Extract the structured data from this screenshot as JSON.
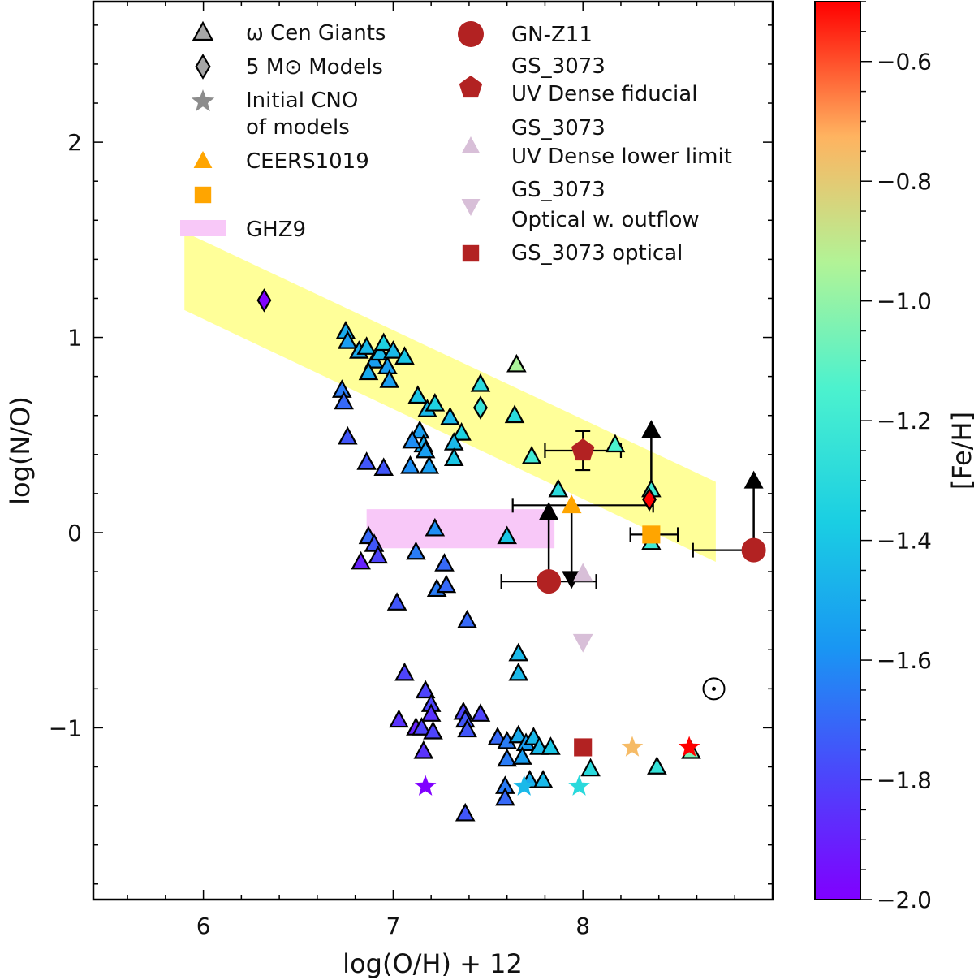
{
  "chart_data": {
    "type": "scatter",
    "xlabel": "log(O/H) + 12",
    "ylabel": "log(N/O)",
    "xlim": [
      5.42,
      9.0
    ],
    "ylim": [
      -1.88,
      2.72
    ],
    "x_ticks": [
      6,
      7,
      8
    ],
    "y_ticks": [
      -1,
      0,
      1,
      2
    ],
    "x_tick_labels": [
      "6",
      "7",
      "8"
    ],
    "y_tick_labels": [
      "−1",
      "0",
      "1",
      "2"
    ],
    "colorbar": {
      "label": "[Fe/H]",
      "range": [
        -2.0,
        -0.5
      ],
      "ticks": [
        -2.0,
        -1.8,
        -1.6,
        -1.4,
        -1.2,
        -1.0,
        -0.8,
        -0.6
      ],
      "tick_labels": [
        "−2.0",
        "−1.8",
        "−1.6",
        "−1.4",
        "−1.2",
        "−1.0",
        "−0.8",
        "−0.6"
      ],
      "colormap": "rainbow"
    },
    "legend": {
      "placement": "top",
      "entries": [
        {
          "label": "ω Cen Giants",
          "marker": "triangle",
          "color": "#a6a6a6"
        },
        {
          "label": "5 M⊙ Models",
          "marker": "diamond",
          "color": "#a6a6a6"
        },
        {
          "label": "Initial CNO",
          "label2": "of models",
          "marker": "star",
          "color": "#8c8c8c"
        },
        {
          "label": "CEERS1019",
          "marker": "triangle",
          "color": "#ffa500"
        },
        {
          "label": "",
          "marker": "square",
          "color": "#ffa500"
        },
        {
          "label": "GHZ9",
          "marker": "band",
          "color": "#f8c8f8"
        },
        {
          "label": "GN-Z11",
          "marker": "circle",
          "color": "#b22222"
        },
        {
          "label": "GS_3073",
          "label2": "UV Dense fiducial",
          "marker": "pentagon",
          "color": "#b22222"
        },
        {
          "label": "GS_3073",
          "label2": "UV Dense lower limit",
          "marker": "triangle",
          "color": "#d8bfd8"
        },
        {
          "label": "GS_3073",
          "label2": "Optical w. outflow",
          "marker": "triangle-down",
          "color": "#d8bfd8"
        },
        {
          "label": "GS_3073 optical",
          "marker": "square",
          "color": "#b22222"
        }
      ]
    },
    "solar_symbol": {
      "x": 8.69,
      "y": -0.8
    },
    "bands": [
      {
        "name": "model-band",
        "color": "#ffff99",
        "polygon": [
          [
            5.9,
            1.54
          ],
          [
            8.7,
            0.26
          ],
          [
            8.7,
            -0.15
          ],
          [
            5.9,
            1.14
          ]
        ]
      },
      {
        "name": "ghz9-band",
        "color": "#f8c8f8",
        "polygon": [
          [
            6.86,
            0.12
          ],
          [
            7.85,
            0.12
          ],
          [
            7.85,
            -0.08
          ],
          [
            6.86,
            -0.08
          ]
        ]
      }
    ],
    "series": [
      {
        "name": "ω Cen Giants",
        "marker": "triangle",
        "points": [
          {
            "x": 6.75,
            "y": 1.03,
            "feh": -1.5
          },
          {
            "x": 6.76,
            "y": 0.98,
            "feh": -1.55
          },
          {
            "x": 6.82,
            "y": 0.93,
            "feh": -1.5
          },
          {
            "x": 6.86,
            "y": 0.95,
            "feh": -1.45
          },
          {
            "x": 6.9,
            "y": 0.88,
            "feh": -1.55
          },
          {
            "x": 6.93,
            "y": 0.92,
            "feh": -1.45
          },
          {
            "x": 6.95,
            "y": 0.97,
            "feh": -1.35
          },
          {
            "x": 6.97,
            "y": 0.85,
            "feh": -1.55
          },
          {
            "x": 7.0,
            "y": 0.93,
            "feh": -1.45
          },
          {
            "x": 7.06,
            "y": 0.9,
            "feh": -1.4
          },
          {
            "x": 6.87,
            "y": 0.82,
            "feh": -1.5
          },
          {
            "x": 6.98,
            "y": 0.78,
            "feh": -1.55
          },
          {
            "x": 6.73,
            "y": 0.73,
            "feh": -1.65
          },
          {
            "x": 6.74,
            "y": 0.67,
            "feh": -1.7
          },
          {
            "x": 7.13,
            "y": 0.7,
            "feh": -1.4
          },
          {
            "x": 7.18,
            "y": 0.63,
            "feh": -1.45
          },
          {
            "x": 7.22,
            "y": 0.66,
            "feh": -1.35
          },
          {
            "x": 7.3,
            "y": 0.59,
            "feh": -1.45
          },
          {
            "x": 7.46,
            "y": 0.76,
            "feh": -1.3
          },
          {
            "x": 7.64,
            "y": 0.6,
            "feh": -1.3
          },
          {
            "x": 7.65,
            "y": 0.86,
            "feh": -0.95
          },
          {
            "x": 7.36,
            "y": 0.51,
            "feh": -1.35
          },
          {
            "x": 7.14,
            "y": 0.52,
            "feh": -1.55
          },
          {
            "x": 7.16,
            "y": 0.45,
            "feh": -1.5
          },
          {
            "x": 7.1,
            "y": 0.47,
            "feh": -1.6
          },
          {
            "x": 7.17,
            "y": 0.42,
            "feh": -1.55
          },
          {
            "x": 7.32,
            "y": 0.46,
            "feh": -1.45
          },
          {
            "x": 7.32,
            "y": 0.38,
            "feh": -1.4
          },
          {
            "x": 7.19,
            "y": 0.34,
            "feh": -1.55
          },
          {
            "x": 7.09,
            "y": 0.34,
            "feh": -1.6
          },
          {
            "x": 6.76,
            "y": 0.49,
            "feh": -1.75
          },
          {
            "x": 6.86,
            "y": 0.36,
            "feh": -1.75
          },
          {
            "x": 6.95,
            "y": 0.33,
            "feh": -1.75
          },
          {
            "x": 7.73,
            "y": 0.39,
            "feh": -1.2
          },
          {
            "x": 7.87,
            "y": 0.22,
            "feh": -1.3
          },
          {
            "x": 8.17,
            "y": 0.45,
            "feh": -1.15
          },
          {
            "x": 7.6,
            "y": -0.02,
            "feh": -1.4
          },
          {
            "x": 7.22,
            "y": 0.02,
            "feh": -1.6
          },
          {
            "x": 7.12,
            "y": -0.1,
            "feh": -1.65
          },
          {
            "x": 6.87,
            "y": -0.02,
            "feh": -1.7
          },
          {
            "x": 6.9,
            "y": -0.06,
            "feh": -1.75
          },
          {
            "x": 6.92,
            "y": -0.12,
            "feh": -1.8
          },
          {
            "x": 6.83,
            "y": -0.15,
            "feh": -1.9
          },
          {
            "x": 7.27,
            "y": -0.16,
            "feh": -1.7
          },
          {
            "x": 7.23,
            "y": -0.29,
            "feh": -1.65
          },
          {
            "x": 7.28,
            "y": -0.27,
            "feh": -1.7
          },
          {
            "x": 7.02,
            "y": -0.36,
            "feh": -1.75
          },
          {
            "x": 7.39,
            "y": -0.45,
            "feh": -1.7
          },
          {
            "x": 7.66,
            "y": -0.62,
            "feh": -1.45
          },
          {
            "x": 7.66,
            "y": -0.72,
            "feh": -1.45
          },
          {
            "x": 7.06,
            "y": -0.72,
            "feh": -1.8
          },
          {
            "x": 7.17,
            "y": -0.81,
            "feh": -1.8
          },
          {
            "x": 7.2,
            "y": -0.88,
            "feh": -1.8
          },
          {
            "x": 7.2,
            "y": -0.93,
            "feh": -1.85
          },
          {
            "x": 7.03,
            "y": -0.96,
            "feh": -1.85
          },
          {
            "x": 7.12,
            "y": -1.0,
            "feh": -1.9
          },
          {
            "x": 7.15,
            "y": -1.0,
            "feh": -1.8
          },
          {
            "x": 7.21,
            "y": -1.02,
            "feh": -1.8
          },
          {
            "x": 7.16,
            "y": -1.12,
            "feh": -1.85
          },
          {
            "x": 7.37,
            "y": -0.92,
            "feh": -1.8
          },
          {
            "x": 7.38,
            "y": -0.96,
            "feh": -1.75
          },
          {
            "x": 7.46,
            "y": -0.93,
            "feh": -1.8
          },
          {
            "x": 7.39,
            "y": -1.01,
            "feh": -1.75
          },
          {
            "x": 7.55,
            "y": -1.05,
            "feh": -1.7
          },
          {
            "x": 7.6,
            "y": -1.07,
            "feh": -1.65
          },
          {
            "x": 7.66,
            "y": -1.04,
            "feh": -1.5
          },
          {
            "x": 7.7,
            "y": -1.08,
            "feh": -1.55
          },
          {
            "x": 7.74,
            "y": -1.05,
            "feh": -1.45
          },
          {
            "x": 7.77,
            "y": -1.1,
            "feh": -1.45
          },
          {
            "x": 7.83,
            "y": -1.1,
            "feh": -1.4
          },
          {
            "x": 7.6,
            "y": -1.16,
            "feh": -1.65
          },
          {
            "x": 7.68,
            "y": -1.15,
            "feh": -1.55
          },
          {
            "x": 7.59,
            "y": -1.3,
            "feh": -1.65
          },
          {
            "x": 7.59,
            "y": -1.36,
            "feh": -1.7
          },
          {
            "x": 7.72,
            "y": -1.27,
            "feh": -1.5
          },
          {
            "x": 7.79,
            "y": -1.27,
            "feh": -1.45
          },
          {
            "x": 8.04,
            "y": -1.21,
            "feh": -1.3
          },
          {
            "x": 8.39,
            "y": -1.2,
            "feh": -1.25
          },
          {
            "x": 8.57,
            "y": -1.12,
            "feh": -1.05
          },
          {
            "x": 7.38,
            "y": -1.44,
            "feh": -1.75
          },
          {
            "x": 8.36,
            "y": -0.05,
            "feh": -1.2
          },
          {
            "x": 8.36,
            "y": 0.22,
            "feh": -1.2
          }
        ]
      },
      {
        "name": "5 M⊙ Models",
        "marker": "diamond",
        "points": [
          {
            "x": 6.32,
            "y": 1.19,
            "feh": -2.0
          },
          {
            "x": 7.46,
            "y": 0.64,
            "feh": -1.25
          },
          {
            "x": 8.35,
            "y": 0.17,
            "feh": -0.5
          }
        ]
      },
      {
        "name": "Initial CNO of models",
        "marker": "star",
        "points": [
          {
            "x": 7.17,
            "y": -1.3,
            "feh": -2.0
          },
          {
            "x": 7.69,
            "y": -1.3,
            "feh": -1.45
          },
          {
            "x": 7.98,
            "y": -1.3,
            "feh": -1.3
          },
          {
            "x": 8.26,
            "y": -1.1,
            "feh": -0.75
          },
          {
            "x": 8.56,
            "y": -1.1,
            "feh": -0.5
          }
        ]
      }
    ],
    "points_obs": [
      {
        "name": "GN-Z11",
        "marker": "circle",
        "color": "#b22222",
        "x": 7.82,
        "y": -0.25,
        "xerr": [
          0.25,
          0.25
        ],
        "up": true
      },
      {
        "name": "GN-Z11",
        "marker": "circle",
        "color": "#b22222",
        "x": 8.9,
        "y": -0.09,
        "xerr": [
          0.32,
          0.0
        ],
        "up": true
      },
      {
        "name": "CEERS1019",
        "marker": "triangle",
        "color": "#ffa500",
        "x": 7.94,
        "y": 0.14,
        "xerr": [
          0.31,
          0.43
        ],
        "down": true
      },
      {
        "name": "CEERS1019",
        "marker": "square",
        "color": "#ffa500",
        "x": 8.36,
        "y": -0.01,
        "xerr": [
          0.11,
          0.14
        ]
      },
      {
        "name": "GS_3073 UV Dense fiducial",
        "marker": "pentagon",
        "color": "#b22222",
        "x": 8.0,
        "y": 0.42,
        "xerr": [
          0.2,
          0.2
        ],
        "yerr": [
          0.1,
          0.1
        ]
      },
      {
        "name": "GS_3073 UV Dense lower limit",
        "marker": "triangle",
        "color": "#d8bfd8",
        "x": 8.0,
        "y": -0.21
      },
      {
        "name": "GS_3073 Optical w. outflow",
        "marker": "triangle-down",
        "color": "#d8bfd8",
        "x": 8.0,
        "y": -0.56
      },
      {
        "name": "GS_3073 optical",
        "marker": "square",
        "color": "#b22222",
        "x": 8.0,
        "y": -1.1
      },
      {
        "name": "upper arrow",
        "marker": "none",
        "color": "#000000",
        "x": 8.36,
        "y": 0.17,
        "up": true
      }
    ]
  }
}
